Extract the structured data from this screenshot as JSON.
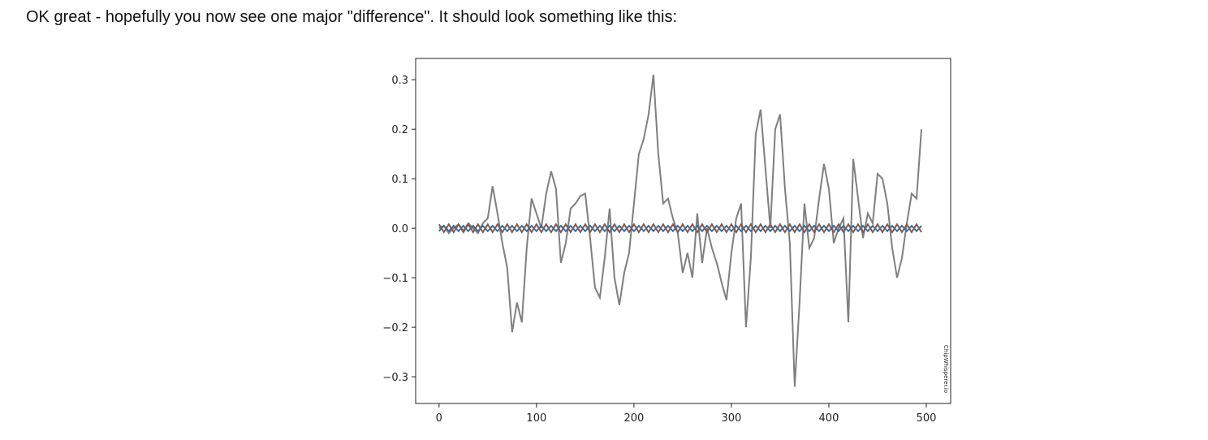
{
  "paragraph": "OK great - hopefully you now see one major \"difference\". It should look something like this:",
  "chart_data": {
    "type": "line",
    "annotation": "ChipWhisperer.io",
    "x": [
      0,
      5,
      10,
      15,
      20,
      25,
      30,
      35,
      40,
      45,
      50,
      55,
      60,
      65,
      70,
      75,
      80,
      85,
      90,
      95,
      100,
      105,
      110,
      115,
      120,
      125,
      130,
      135,
      140,
      145,
      150,
      155,
      160,
      165,
      170,
      175,
      180,
      185,
      190,
      195,
      200,
      205,
      210,
      215,
      220,
      225,
      230,
      235,
      240,
      245,
      250,
      255,
      260,
      265,
      270,
      275,
      280,
      285,
      290,
      295,
      300,
      305,
      310,
      315,
      320,
      325,
      330,
      335,
      340,
      345,
      350,
      355,
      360,
      365,
      370,
      375,
      380,
      385,
      390,
      395,
      400,
      405,
      410,
      415,
      420,
      425,
      430,
      435,
      440,
      445,
      450,
      455,
      460,
      465,
      470,
      475,
      480,
      485,
      490,
      495
    ],
    "series": [
      {
        "color": "#7f7f7f",
        "values": [
          0.0,
          0.005,
          -0.01,
          0.0,
          0.008,
          -0.005,
          0.01,
          0.0,
          -0.01,
          0.01,
          0.02,
          0.085,
          0.03,
          -0.03,
          -0.08,
          -0.21,
          -0.15,
          -0.19,
          -0.04,
          0.06,
          0.03,
          0.0,
          0.07,
          0.115,
          0.08,
          -0.07,
          -0.03,
          0.04,
          0.05,
          0.065,
          0.07,
          -0.02,
          -0.12,
          -0.14,
          -0.06,
          0.04,
          -0.1,
          -0.155,
          -0.09,
          -0.05,
          0.05,
          0.15,
          0.18,
          0.23,
          0.31,
          0.15,
          0.05,
          0.06,
          0.02,
          -0.01,
          -0.09,
          -0.05,
          -0.1,
          0.03,
          -0.07,
          0.0,
          -0.04,
          -0.07,
          -0.11,
          -0.145,
          -0.05,
          0.02,
          0.05,
          -0.2,
          -0.06,
          0.19,
          0.24,
          0.12,
          0.0,
          0.2,
          0.23,
          0.08,
          -0.03,
          -0.32,
          -0.15,
          0.05,
          -0.04,
          -0.02,
          0.06,
          0.13,
          0.08,
          -0.03,
          0.0,
          0.02,
          -0.19,
          0.14,
          0.06,
          -0.02,
          0.03,
          0.01,
          0.11,
          0.1,
          0.05,
          -0.04,
          -0.1,
          -0.06,
          0.01,
          0.07,
          0.06,
          0.2
        ]
      },
      {
        "color": "#1f77b4",
        "values": [
          -0.006,
          0.005,
          -0.006,
          0.005,
          -0.006,
          0.005,
          -0.006,
          0.005,
          -0.006,
          0.005,
          -0.006,
          0.005,
          -0.006,
          0.005,
          -0.006,
          0.005,
          -0.006,
          0.005,
          -0.006,
          0.005,
          -0.006,
          0.005,
          -0.006,
          0.005,
          -0.006,
          0.005,
          -0.006,
          0.005,
          -0.006,
          0.005,
          -0.006,
          0.005,
          -0.006,
          0.005,
          -0.006,
          0.005,
          -0.006,
          0.005,
          -0.006,
          0.005,
          -0.006,
          0.005,
          -0.006,
          0.005,
          -0.006,
          0.005,
          -0.006,
          0.005,
          -0.006,
          0.005,
          -0.006,
          0.005,
          -0.006,
          0.005,
          -0.006,
          0.005,
          -0.006,
          0.005,
          -0.006,
          0.005,
          -0.006,
          0.005,
          -0.006,
          0.005,
          -0.006,
          0.005,
          -0.006,
          0.005,
          -0.006,
          0.005,
          -0.006,
          0.005,
          -0.006,
          0.005,
          -0.006,
          0.005,
          -0.006,
          0.005,
          -0.006,
          0.005,
          -0.006,
          0.005,
          -0.006,
          0.005,
          -0.006,
          0.005,
          -0.006,
          0.005,
          -0.006,
          0.005,
          -0.006,
          0.005,
          -0.006,
          0.005,
          -0.006,
          0.005,
          -0.006,
          0.005,
          -0.006,
          0.005
        ]
      },
      {
        "color": "#8c564b",
        "values": [
          0.008,
          -0.008,
          0.008,
          -0.008,
          0.008,
          -0.008,
          0.008,
          -0.008,
          0.008,
          -0.008,
          0.008,
          -0.008,
          0.008,
          -0.008,
          0.008,
          -0.008,
          0.008,
          -0.008,
          0.008,
          -0.008,
          0.008,
          -0.008,
          0.008,
          -0.008,
          0.008,
          -0.008,
          0.008,
          -0.008,
          0.008,
          -0.008,
          0.008,
          -0.008,
          0.008,
          -0.008,
          0.008,
          -0.008,
          0.008,
          -0.008,
          0.008,
          -0.008,
          0.008,
          -0.008,
          0.008,
          -0.008,
          0.008,
          -0.008,
          0.008,
          -0.008,
          0.008,
          -0.008,
          0.008,
          -0.008,
          0.008,
          -0.008,
          0.008,
          -0.008,
          0.008,
          -0.008,
          0.008,
          -0.008,
          0.008,
          -0.008,
          0.008,
          -0.008,
          0.008,
          -0.008,
          0.008,
          -0.008,
          0.008,
          -0.008,
          0.008,
          -0.008,
          0.008,
          -0.008,
          0.008,
          -0.008,
          0.008,
          -0.008,
          0.008,
          -0.008,
          0.008,
          -0.008,
          0.008,
          -0.008,
          0.008,
          -0.008,
          0.008,
          -0.008,
          0.008,
          -0.008,
          0.008,
          -0.008,
          0.008,
          -0.008,
          0.008,
          -0.008,
          0.008,
          -0.008,
          0.008,
          -0.008
        ]
      }
    ],
    "xlim": [
      -24,
      525
    ],
    "xticks": [
      0,
      100,
      200,
      300,
      400,
      500
    ],
    "ylim": [
      -0.354,
      0.343
    ],
    "yticks": [
      {
        "value": -0.3,
        "label": "−0.3"
      },
      {
        "value": -0.2,
        "label": "−0.2"
      },
      {
        "value": -0.1,
        "label": "−0.1"
      },
      {
        "value": 0,
        "label": "0.0"
      },
      0.1,
      0.2,
      0.3
    ]
  }
}
